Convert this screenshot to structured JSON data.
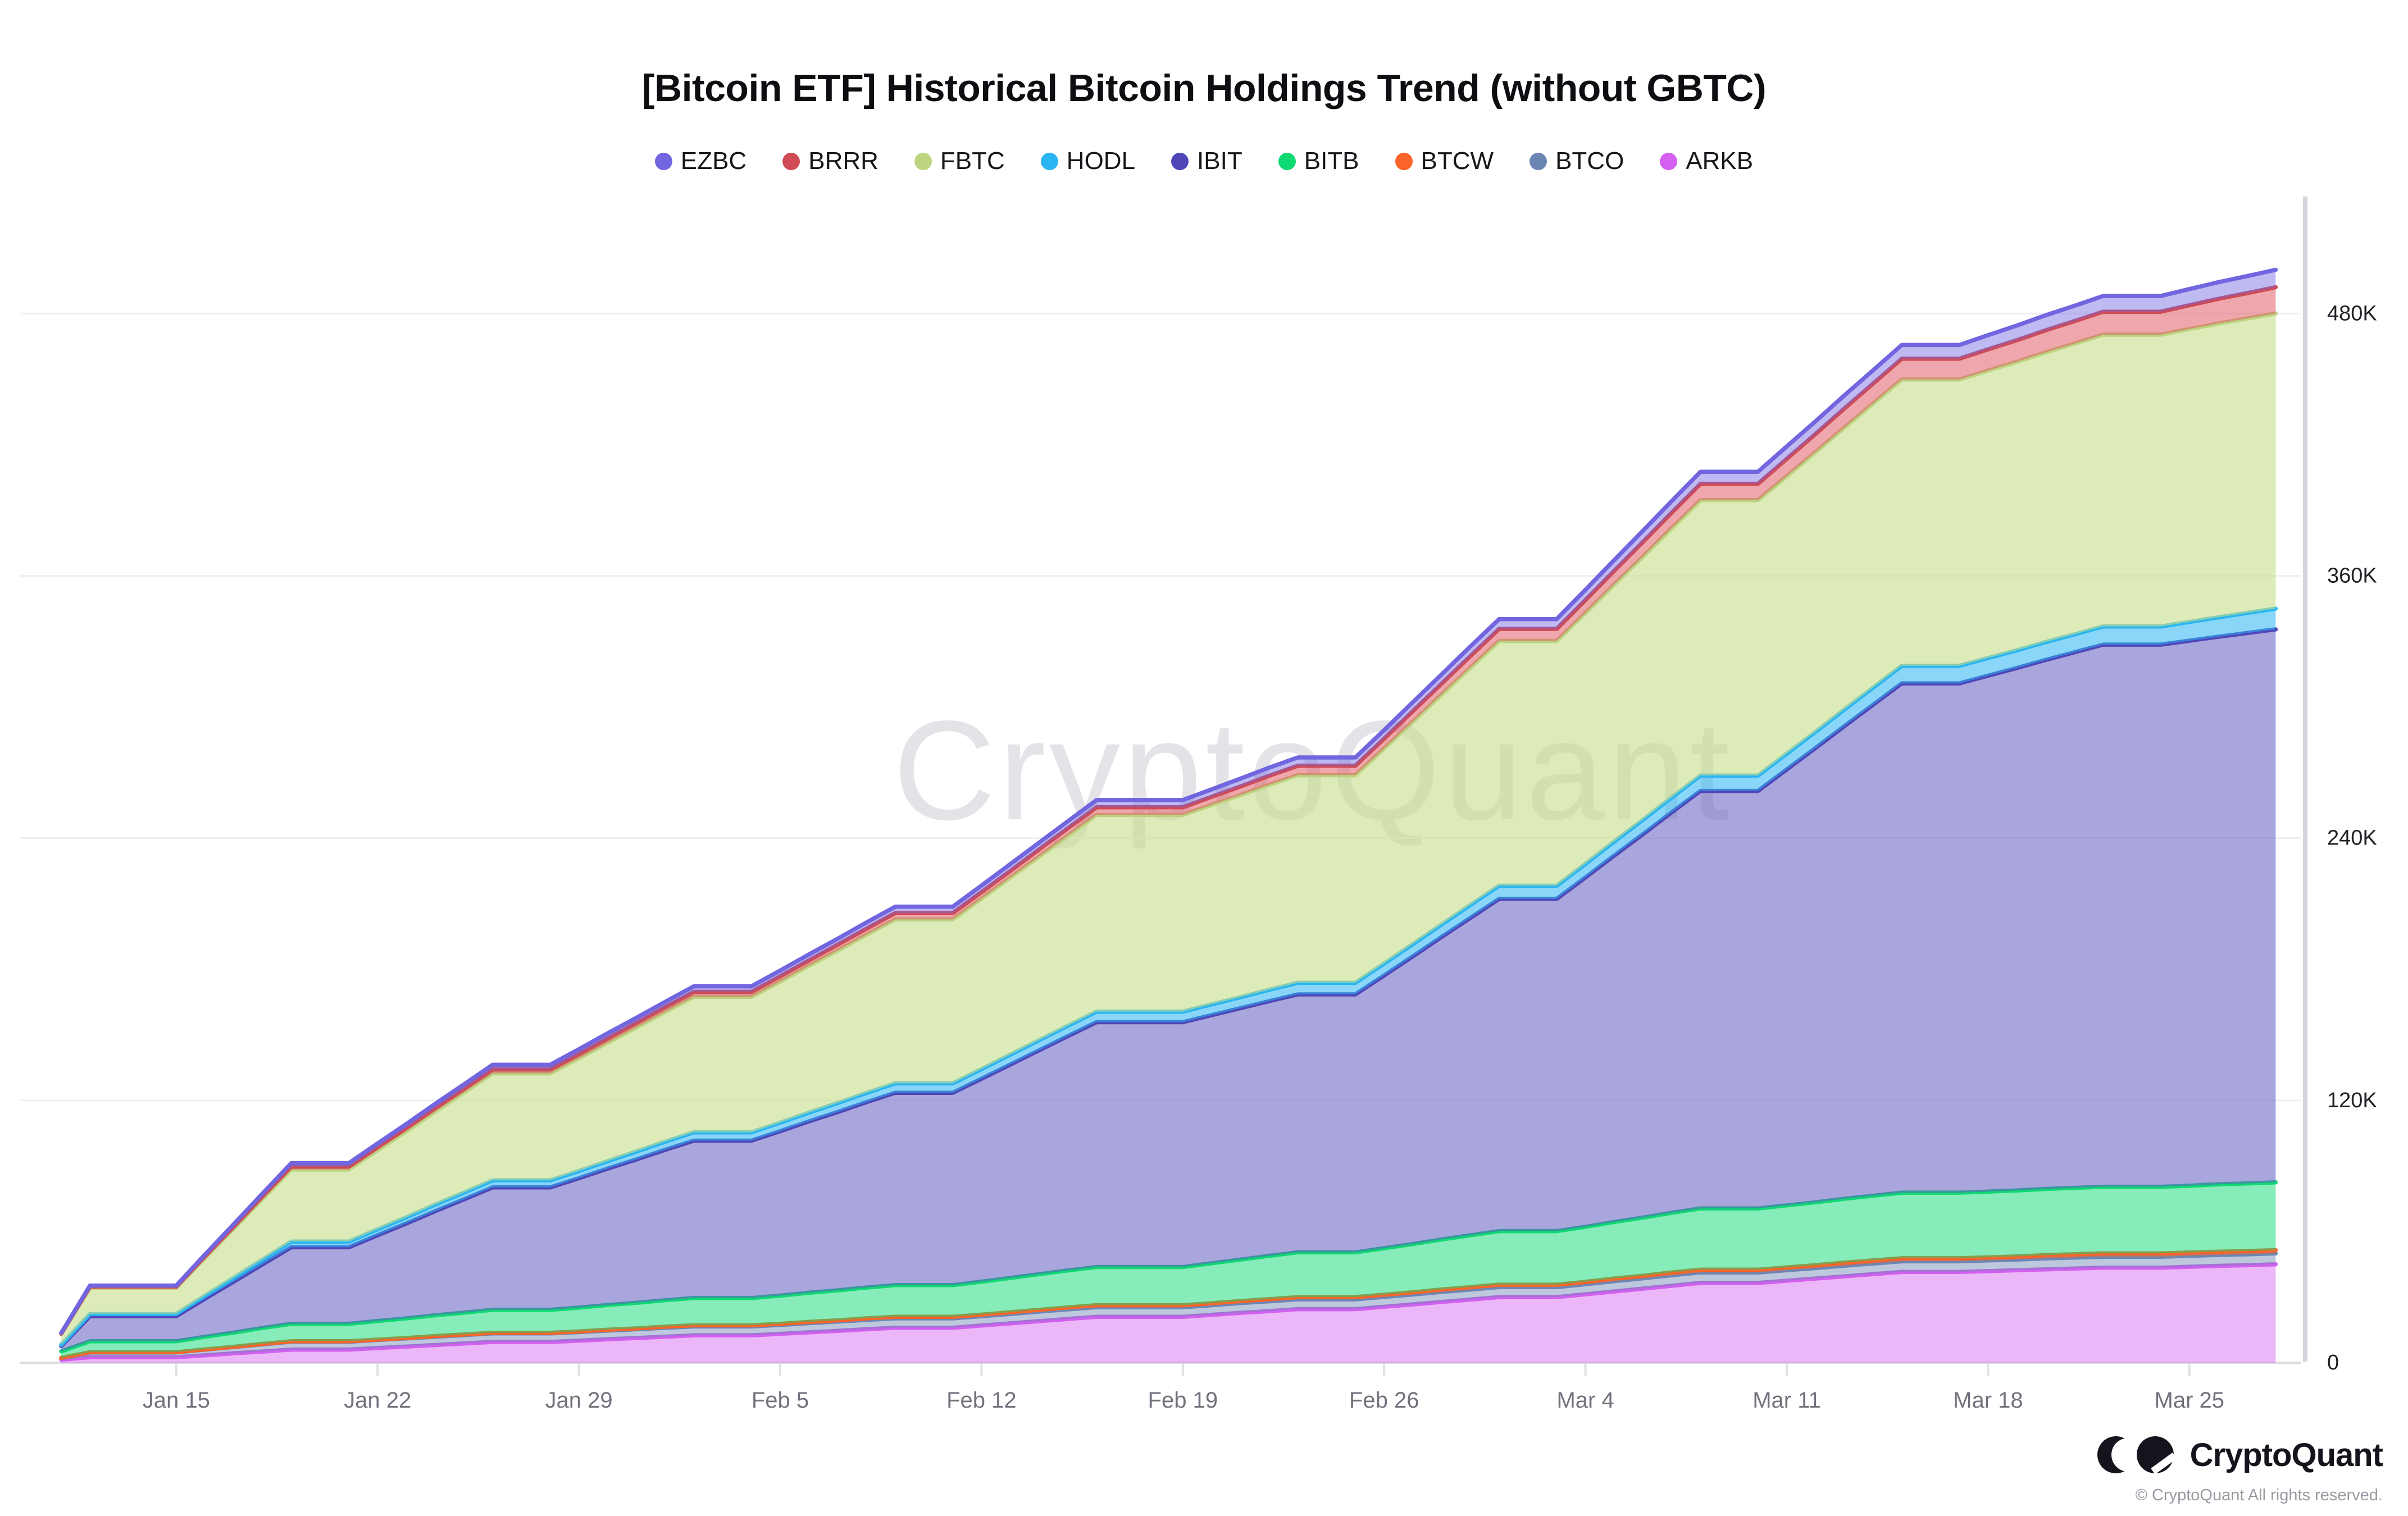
{
  "chart": {
    "title": "[Bitcoin ETF] Historical Bitcoin Holdings Trend (without GBTC)",
    "watermark": "CryptoQuant"
  },
  "footer": {
    "logo_text": "CryptoQuant",
    "copyright": "© CryptoQuant All rights reserved."
  },
  "chart_data": {
    "type": "area",
    "stacked": true,
    "title": "[Bitcoin ETF] Historical Bitcoin Holdings Trend (without GBTC)",
    "values_unit": "thousand BTC",
    "ylim": [
      0,
      530
    ],
    "grid": "horizontal",
    "legend_position": "top-center",
    "y_ticks": [
      {
        "label": "0",
        "value": 0
      },
      {
        "label": "120K",
        "value": 120
      },
      {
        "label": "240K",
        "value": 240
      },
      {
        "label": "360K",
        "value": 360
      },
      {
        "label": "480K",
        "value": 480
      }
    ],
    "x_axis": {
      "tick_labels": [
        "Jan 15",
        "Jan 22",
        "Jan 29",
        "Feb 5",
        "Feb 12",
        "Feb 19",
        "Feb 26",
        "Mar 4",
        "Mar 11",
        "Mar 18",
        "Mar 25"
      ],
      "tick_day_indices": [
        4,
        11,
        18,
        25,
        32,
        39,
        46,
        53,
        60,
        67,
        74
      ]
    },
    "stack_order_bottom_to_top": [
      "ARKB",
      "BTCO",
      "BTCW",
      "BITB",
      "IBIT",
      "HODL",
      "FBTC",
      "BRRR",
      "EZBC"
    ],
    "series": [
      {
        "name": "EZBC",
        "color": "#7166e0",
        "fill": "rgba(113,102,224,0.45)",
        "values": [
          0.3,
          0.5,
          0.5,
          0.5,
          0.5,
          0.8,
          1.1,
          1.3,
          1.6,
          1.6,
          1.6,
          1.7,
          1.8,
          1.9,
          2,
          2.1,
          2.1,
          2.1,
          2.2,
          2.3,
          2.3,
          2.4,
          2.5,
          2.5,
          2.5,
          2.6,
          2.7,
          2.7,
          2.8,
          2.9,
          2.9,
          2.9,
          3,
          3.1,
          3.1,
          3.2,
          3.3,
          3.3,
          3.3,
          3.3,
          3.4,
          3.6,
          3.7,
          3.8,
          3.8,
          3.8,
          3.9,
          4.1,
          4.2,
          4.4,
          4.5,
          4.5,
          4.5,
          4.7,
          4.9,
          5.1,
          5.3,
          5.5,
          5.5,
          5.5,
          5.7,
          5.8,
          6,
          6.1,
          6.3,
          6.3,
          6.3,
          6.5,
          6.7,
          6.9,
          7,
          7.2,
          7.2,
          7.2,
          7.4,
          7.6,
          7.8,
          8
        ]
      },
      {
        "name": "BRRR",
        "color": "#cf4b55",
        "fill": "rgba(226,93,103,0.55)",
        "values": [
          0.2,
          0.5,
          0.5,
          0.5,
          0.5,
          0.7,
          0.9,
          1.1,
          1.3,
          1.3,
          1.3,
          1.4,
          1.5,
          1.6,
          1.7,
          1.8,
          1.8,
          1.8,
          1.9,
          2,
          2.1,
          2.2,
          2.3,
          2.3,
          2.3,
          2.4,
          2.5,
          2.7,
          2.8,
          2.9,
          2.9,
          2.9,
          3,
          3.1,
          3.3,
          3.4,
          3.5,
          3.5,
          3.5,
          3.5,
          3.7,
          3.9,
          4.1,
          4.3,
          4.3,
          4.3,
          4.5,
          4.8,
          5,
          5.3,
          5.5,
          5.5,
          5.5,
          5.9,
          6.3,
          6.7,
          7.1,
          7.5,
          7.5,
          7.5,
          7.9,
          8.3,
          8.7,
          9.1,
          9.5,
          9.5,
          9.5,
          9.7,
          9.9,
          10.1,
          10.3,
          10.5,
          10.5,
          10.5,
          10.9,
          11.3,
          11.6,
          12
        ]
      },
      {
        "name": "FBTC",
        "color": "#bcd47f",
        "fill": "rgba(199,221,139,0.6)",
        "values": [
          4.9,
          12,
          12,
          12,
          12,
          17.3,
          22.5,
          27.8,
          33,
          33,
          33,
          36.2,
          39.4,
          42.6,
          45.8,
          49,
          49,
          49,
          51.6,
          54.2,
          56.8,
          59.4,
          62,
          62,
          62,
          64.6,
          67.2,
          69.8,
          72.4,
          75,
          75,
          75,
          78,
          81,
          84,
          87,
          90,
          90,
          90,
          90,
          91.3,
          92.5,
          93.8,
          95,
          95,
          95,
          98.4,
          101.8,
          105.2,
          108.6,
          112,
          112,
          112,
          114.8,
          117.6,
          120.4,
          123.2,
          126,
          126,
          126,
          127,
          128,
          129,
          130,
          131,
          131,
          131,
          131.5,
          132,
          132.5,
          133,
          133.5,
          133.5,
          133.5,
          134,
          134.4,
          134.7,
          135
        ]
      },
      {
        "name": "HODL",
        "color": "#29b5f2",
        "fill": "rgba(41,181,242,0.55)",
        "values": [
          0.6,
          1,
          1,
          1,
          1,
          1.4,
          1.8,
          2.2,
          2.6,
          2.6,
          2.6,
          2.7,
          2.8,
          3,
          3.1,
          3.2,
          3.2,
          3.2,
          3.3,
          3.4,
          3.6,
          3.7,
          3.8,
          3.8,
          3.8,
          3.9,
          4,
          4.1,
          4.2,
          4.3,
          4.3,
          4.3,
          4.4,
          4.5,
          4.6,
          4.7,
          4.8,
          4.8,
          4.8,
          4.8,
          4.9,
          5,
          5.2,
          5.3,
          5.3,
          5.3,
          5.4,
          5.6,
          5.7,
          5.9,
          6,
          6,
          6,
          6.2,
          6.4,
          6.6,
          6.8,
          7,
          7,
          7,
          7.2,
          7.4,
          7.6,
          7.8,
          8,
          8,
          8,
          8.1,
          8.1,
          8.2,
          8.2,
          8.3,
          8.3,
          8.3,
          8.6,
          8.9,
          9.2,
          9.5
        ]
      },
      {
        "name": "IBIT",
        "color": "#4f46b8",
        "fill": "rgba(99,92,195,0.55)",
        "values": [
          2.4,
          11.5,
          11.5,
          11.5,
          11.5,
          17.4,
          23.3,
          29.1,
          35,
          35,
          35,
          39.2,
          43.4,
          47.6,
          51.8,
          56,
          56,
          56,
          59.2,
          62.4,
          65.6,
          68.8,
          72,
          72,
          72,
          75.2,
          78.4,
          81.6,
          84.8,
          88,
          88,
          88,
          92.8,
          97.6,
          102.4,
          107.2,
          112,
          112,
          112,
          112,
          113.5,
          115,
          116.5,
          118,
          118,
          118,
          124.8,
          131.6,
          138.4,
          145.2,
          152,
          152,
          152,
          159.8,
          167.6,
          175.4,
          183.2,
          191,
          191,
          191,
          199.4,
          207.8,
          216.2,
          224.6,
          233,
          233,
          233,
          236,
          239,
          242,
          245,
          248,
          248,
          248,
          249.3,
          250.5,
          251.8,
          253
        ]
      },
      {
        "name": "BITB",
        "color": "#0ed973",
        "fill": "rgba(14,217,115,0.5)",
        "values": [
          3,
          5,
          5,
          5,
          5,
          5.8,
          6.5,
          7.3,
          8,
          8,
          8,
          8.5,
          9,
          9.5,
          10,
          10.5,
          10.5,
          10.5,
          10.9,
          11.3,
          11.7,
          12.1,
          12.5,
          12.5,
          12.5,
          12.9,
          13.3,
          13.7,
          14.1,
          14.5,
          14.5,
          14.5,
          15.1,
          15.7,
          16.3,
          16.9,
          17.5,
          17.5,
          17.5,
          17.5,
          18.3,
          19,
          19.8,
          20.5,
          20.5,
          20.5,
          21.3,
          22.1,
          22.9,
          23.7,
          24.5,
          24.5,
          24.5,
          25.2,
          25.9,
          26.6,
          27.3,
          28,
          28,
          28,
          28.4,
          28.8,
          29.2,
          29.6,
          30,
          30,
          30,
          30.1,
          30.2,
          30.3,
          30.4,
          30.5,
          30.5,
          30.5,
          30.6,
          30.8,
          30.9,
          31
        ]
      },
      {
        "name": "BTCW",
        "color": "#fb6328",
        "fill": "rgba(251,99,40,0.5)",
        "values": [
          0.1,
          0.1,
          0.1,
          0.1,
          0.1,
          0.1,
          0.1,
          0.2,
          0.2,
          0.2,
          0.2,
          0.2,
          0.2,
          0.3,
          0.3,
          0.3,
          0.3,
          0.3,
          0.3,
          0.4,
          0.4,
          0.5,
          0.5,
          0.5,
          0.5,
          0.5,
          0.6,
          0.6,
          0.7,
          0.7,
          0.7,
          0.7,
          0.7,
          0.8,
          0.8,
          0.9,
          0.9,
          0.9,
          0.9,
          0.9,
          0.9,
          0.9,
          1,
          1,
          1,
          1,
          1,
          1,
          1.1,
          1.1,
          1.1,
          1.1,
          1.1,
          1.1,
          1.2,
          1.2,
          1.3,
          1.3,
          1.3,
          1.3,
          1.3,
          1.3,
          1.4,
          1.4,
          1.4,
          1.4,
          1.4,
          1.4,
          1.4,
          1.5,
          1.5,
          1.5,
          1.5,
          1.5,
          1.5,
          1.5,
          1.5,
          1.5
        ]
      },
      {
        "name": "BTCO",
        "color": "#6c86b4",
        "fill": "rgba(108,134,180,0.45)",
        "values": [
          0.7,
          2.2,
          2.2,
          2.2,
          2.2,
          2.6,
          2.9,
          3.3,
          3.6,
          3.6,
          3.6,
          3.7,
          3.7,
          3.8,
          3.8,
          3.9,
          3.9,
          3.9,
          3.9,
          4,
          4,
          4.1,
          4.1,
          4.1,
          4.1,
          4.1,
          4.2,
          4.2,
          4.3,
          4.3,
          4.3,
          4.3,
          4.3,
          4.3,
          4.4,
          4.4,
          4.4,
          4.4,
          4.4,
          4.4,
          4.4,
          4.5,
          4.5,
          4.5,
          4.5,
          4.5,
          4.5,
          4.5,
          4.6,
          4.6,
          4.6,
          4.6,
          4.6,
          4.6,
          4.7,
          4.7,
          4.8,
          4.8,
          4.8,
          4.8,
          4.8,
          4.8,
          4.9,
          4.9,
          4.9,
          4.9,
          4.9,
          4.9,
          4.9,
          5,
          5,
          5,
          5,
          5,
          5,
          5,
          5,
          5
        ]
      },
      {
        "name": "ARKB",
        "color": "#d45ff0",
        "fill": "rgba(212,95,240,0.45)",
        "values": [
          1.4,
          2.5,
          2.5,
          2.5,
          2.5,
          3.4,
          4.3,
          5.1,
          6,
          6,
          6,
          6.7,
          7.4,
          8.1,
          8.8,
          9.5,
          9.5,
          9.5,
          10.1,
          10.7,
          11.3,
          11.9,
          12.5,
          12.5,
          12.5,
          13.2,
          13.9,
          14.6,
          15.3,
          16,
          16,
          16,
          17,
          18,
          19,
          20,
          21,
          21,
          21,
          21,
          21.9,
          22.8,
          23.6,
          24.5,
          24.5,
          24.5,
          25.6,
          26.7,
          27.8,
          28.9,
          30,
          30,
          30,
          31.3,
          32.6,
          33.9,
          35.2,
          36.5,
          36.5,
          36.5,
          37.5,
          38.5,
          39.5,
          40.5,
          41.5,
          41.5,
          41.5,
          41.9,
          42.3,
          42.7,
          43.1,
          43.5,
          43.5,
          43.5,
          43.9,
          44.3,
          44.6,
          45
        ]
      }
    ]
  }
}
